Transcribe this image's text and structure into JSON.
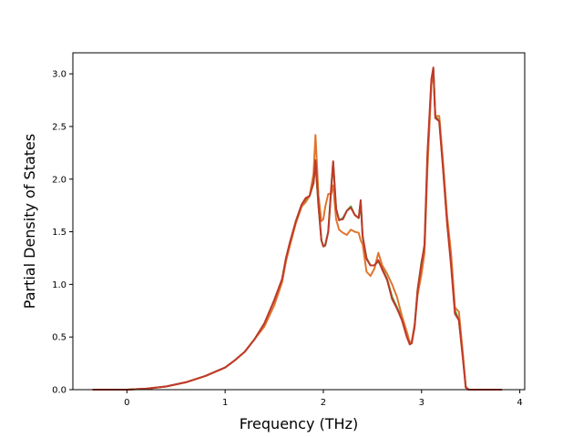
{
  "chart_data": {
    "type": "line",
    "title": "",
    "xlabel": "Frequency (THz)",
    "ylabel": "Partial Density of States",
    "xlim": [
      -0.55,
      4.05
    ],
    "ylim": [
      0.0,
      3.2
    ],
    "xticks": [
      0,
      1,
      2,
      3,
      4
    ],
    "yticks": [
      0.0,
      0.5,
      1.0,
      1.5,
      2.0,
      2.5,
      3.0
    ],
    "grid": false,
    "legend": "none",
    "series": [
      {
        "color": "#2ca02c",
        "x": [
          -0.35,
          0.0,
          0.2,
          0.4,
          0.6,
          0.8,
          1.0,
          1.1,
          1.2,
          1.3,
          1.4,
          1.5,
          1.58,
          1.62,
          1.66,
          1.72,
          1.78,
          1.82,
          1.86,
          1.9,
          1.92,
          1.95,
          1.98,
          2.0,
          2.02,
          2.05,
          2.08,
          2.1,
          2.13,
          2.16,
          2.2,
          2.24,
          2.28,
          2.32,
          2.36,
          2.38,
          2.4,
          2.44,
          2.48,
          2.52,
          2.56,
          2.6,
          2.65,
          2.7,
          2.75,
          2.8,
          2.85,
          2.88,
          2.9,
          2.93,
          2.96,
          3.0,
          3.03,
          3.06,
          3.1,
          3.12,
          3.14,
          3.18,
          3.22,
          3.26,
          3.3,
          3.34,
          3.38,
          3.42,
          3.45,
          3.48,
          3.5,
          3.6,
          3.82
        ],
        "y": [
          0.0,
          0.0,
          0.01,
          0.03,
          0.07,
          0.13,
          0.21,
          0.28,
          0.36,
          0.48,
          0.63,
          0.85,
          1.05,
          1.25,
          1.4,
          1.6,
          1.76,
          1.8,
          1.84,
          1.96,
          2.15,
          1.75,
          1.42,
          1.36,
          1.38,
          1.5,
          1.9,
          2.16,
          1.72,
          1.61,
          1.63,
          1.7,
          1.74,
          1.66,
          1.63,
          1.78,
          1.45,
          1.25,
          1.18,
          1.18,
          1.22,
          1.15,
          1.05,
          0.88,
          0.78,
          0.68,
          0.52,
          0.43,
          0.45,
          0.62,
          0.95,
          1.22,
          1.35,
          2.2,
          2.92,
          3.05,
          2.6,
          2.55,
          2.1,
          1.6,
          1.2,
          0.75,
          0.66,
          0.32,
          0.02,
          0.0,
          0.0,
          0.0,
          0.0
        ]
      },
      {
        "color": "#e0752d",
        "x": [
          -0.35,
          0.0,
          0.2,
          0.4,
          0.6,
          0.8,
          1.0,
          1.1,
          1.2,
          1.3,
          1.4,
          1.5,
          1.58,
          1.62,
          1.66,
          1.72,
          1.78,
          1.82,
          1.86,
          1.9,
          1.92,
          1.95,
          1.98,
          2.0,
          2.02,
          2.05,
          2.08,
          2.1,
          2.13,
          2.16,
          2.2,
          2.24,
          2.28,
          2.32,
          2.36,
          2.38,
          2.4,
          2.44,
          2.48,
          2.52,
          2.56,
          2.6,
          2.65,
          2.7,
          2.75,
          2.8,
          2.85,
          2.88,
          2.9,
          2.93,
          2.96,
          3.0,
          3.03,
          3.06,
          3.1,
          3.12,
          3.14,
          3.18,
          3.22,
          3.26,
          3.3,
          3.34,
          3.38,
          3.42,
          3.45,
          3.48,
          3.5,
          3.6,
          3.82
        ],
        "y": [
          0.0,
          0.0,
          0.01,
          0.03,
          0.07,
          0.13,
          0.21,
          0.28,
          0.36,
          0.48,
          0.6,
          0.8,
          1.02,
          1.22,
          1.37,
          1.58,
          1.74,
          1.78,
          1.84,
          2.05,
          2.42,
          1.85,
          1.6,
          1.62,
          1.74,
          1.86,
          1.86,
          1.94,
          1.62,
          1.52,
          1.49,
          1.47,
          1.52,
          1.5,
          1.49,
          1.42,
          1.38,
          1.12,
          1.08,
          1.15,
          1.3,
          1.18,
          1.1,
          1.0,
          0.88,
          0.7,
          0.55,
          0.45,
          0.46,
          0.62,
          0.9,
          1.1,
          1.3,
          2.1,
          2.9,
          3.02,
          2.6,
          2.6,
          2.15,
          1.65,
          1.3,
          0.78,
          0.74,
          0.35,
          0.03,
          0.0,
          0.0,
          0.0,
          0.0
        ]
      },
      {
        "color": "#c0392b",
        "x": [
          -0.35,
          0.0,
          0.2,
          0.4,
          0.6,
          0.8,
          1.0,
          1.1,
          1.2,
          1.3,
          1.4,
          1.5,
          1.58,
          1.62,
          1.66,
          1.72,
          1.78,
          1.82,
          1.86,
          1.9,
          1.92,
          1.95,
          1.98,
          2.0,
          2.02,
          2.05,
          2.08,
          2.1,
          2.13,
          2.16,
          2.2,
          2.24,
          2.28,
          2.32,
          2.36,
          2.38,
          2.4,
          2.44,
          2.48,
          2.52,
          2.56,
          2.6,
          2.65,
          2.7,
          2.75,
          2.8,
          2.85,
          2.88,
          2.9,
          2.93,
          2.96,
          3.0,
          3.03,
          3.06,
          3.1,
          3.12,
          3.14,
          3.18,
          3.22,
          3.26,
          3.3,
          3.34,
          3.38,
          3.42,
          3.45,
          3.48,
          3.5,
          3.6,
          3.82
        ],
        "y": [
          0.0,
          0.0,
          0.01,
          0.03,
          0.07,
          0.13,
          0.21,
          0.28,
          0.36,
          0.48,
          0.63,
          0.85,
          1.05,
          1.25,
          1.4,
          1.6,
          1.76,
          1.82,
          1.84,
          1.97,
          2.18,
          1.76,
          1.42,
          1.36,
          1.37,
          1.5,
          1.92,
          2.17,
          1.72,
          1.61,
          1.62,
          1.7,
          1.73,
          1.66,
          1.63,
          1.8,
          1.46,
          1.24,
          1.18,
          1.18,
          1.23,
          1.14,
          1.04,
          0.86,
          0.77,
          0.66,
          0.5,
          0.43,
          0.44,
          0.6,
          0.95,
          1.2,
          1.38,
          2.25,
          2.95,
          3.06,
          2.58,
          2.55,
          2.08,
          1.58,
          1.18,
          0.72,
          0.66,
          0.3,
          0.02,
          0.0,
          0.0,
          0.0,
          0.0
        ]
      }
    ]
  }
}
